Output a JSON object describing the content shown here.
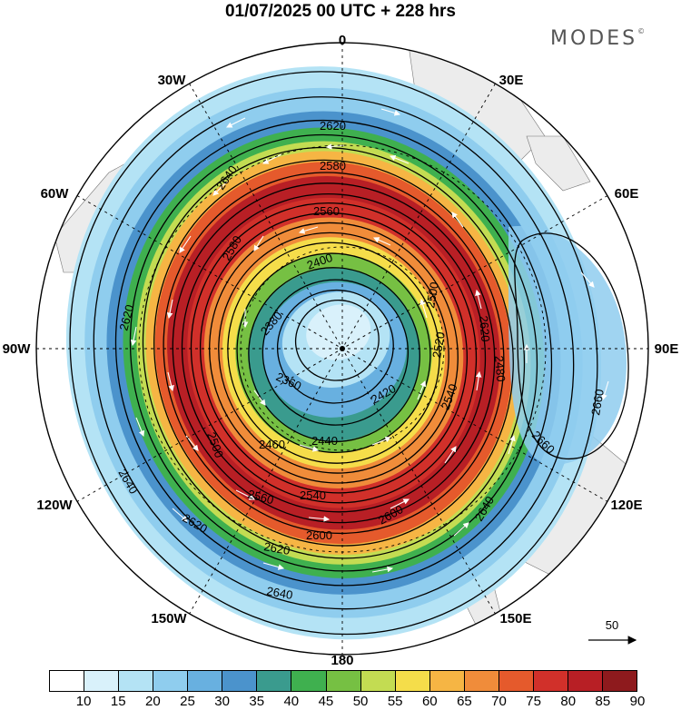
{
  "title": "01/07/2025  00 UTC  + 228 hrs",
  "brand": "MODES",
  "brand_mark": "©",
  "longitude_labels": [
    "0",
    "30E",
    "60E",
    "90E",
    "120E",
    "150E",
    "180",
    "150W",
    "120W",
    "90W",
    "60W",
    "30W"
  ],
  "contour_labels": [
    "2620",
    "2640",
    "2580",
    "2560",
    "2400",
    "2380",
    "2360",
    "2420",
    "2440",
    "2460",
    "2500",
    "2540",
    "2560",
    "2600",
    "2620",
    "2640",
    "2660",
    "2660",
    "2640",
    "2620",
    "2600",
    "2520",
    "2540",
    "2620",
    "2640",
    "2620",
    "2580",
    "2480",
    "2500"
  ],
  "vector_reference": "50",
  "colorbar": {
    "ticks": [
      "10",
      "15",
      "20",
      "25",
      "30",
      "35",
      "40",
      "45",
      "50",
      "55",
      "60",
      "65",
      "70",
      "75",
      "80",
      "85",
      "90"
    ],
    "colors": [
      "#ffffff",
      "#d9f1fb",
      "#b4e3f5",
      "#8fcdee",
      "#68b0e0",
      "#4b93cc",
      "#3a9b8e",
      "#3fb04f",
      "#76c043",
      "#c3dc52",
      "#f5dd4a",
      "#f6b544",
      "#f08c3a",
      "#e55a2c",
      "#d1302a",
      "#b81f25",
      "#8e1a1d"
    ]
  }
}
